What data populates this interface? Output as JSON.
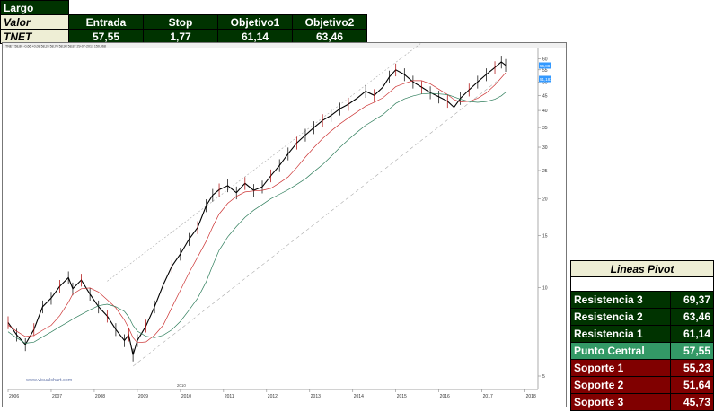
{
  "trade": {
    "direction": "Largo",
    "value_label": "Valor",
    "ticker": "TNET",
    "headers": [
      "Entrada",
      "Stop",
      "Objetivo1",
      "Objetivo2"
    ],
    "values": [
      "57,55",
      "1,77",
      "61,14",
      "63,46"
    ]
  },
  "chart_data": {
    "type": "line",
    "series": [
      {
        "name": "",
        "values": []
      }
    ],
    "watermark": "www.visualchart.com",
    "top_bar_text": "TNET 58,80 -0,66 +0,08 58,24 58,70 58,98 58,87 29-07-2017 150,968",
    "x_axis_labels": [
      "2006",
      "2007",
      "2008",
      "2009",
      "2010",
      "2011",
      "2012",
      "2013",
      "2014",
      "2015",
      "2016",
      "2017",
      "2018"
    ],
    "y_axis_labels": [
      "60",
      "55",
      "50",
      "45",
      "40",
      "35",
      "30",
      "25",
      "20",
      "15",
      "10",
      "5"
    ],
    "y_scale": "log",
    "ylim": [
      4.5,
      65
    ],
    "price_tags": [
      "56,88",
      "51,183"
    ],
    "start_year": 2006,
    "points": [
      [
        2006.0,
        7.6
      ],
      [
        2006.2,
        6.9
      ],
      [
        2006.4,
        6.4
      ],
      [
        2006.6,
        7.2
      ],
      [
        2006.8,
        8.6
      ],
      [
        2007.0,
        9.2
      ],
      [
        2007.2,
        10.1
      ],
      [
        2007.4,
        10.8
      ],
      [
        2007.5,
        9.9
      ],
      [
        2007.7,
        10.6
      ],
      [
        2007.9,
        9.5
      ],
      [
        2008.1,
        8.6
      ],
      [
        2008.3,
        8.0
      ],
      [
        2008.5,
        7.2
      ],
      [
        2008.7,
        6.6
      ],
      [
        2008.8,
        6.9
      ],
      [
        2008.9,
        5.9
      ],
      [
        2009.0,
        6.6
      ],
      [
        2009.2,
        7.4
      ],
      [
        2009.4,
        8.6
      ],
      [
        2009.6,
        10.2
      ],
      [
        2009.8,
        11.8
      ],
      [
        2010.0,
        13.0
      ],
      [
        2010.2,
        14.6
      ],
      [
        2010.4,
        16.0
      ],
      [
        2010.6,
        19.0
      ],
      [
        2010.75,
        20.6
      ],
      [
        2010.9,
        21.5
      ],
      [
        2011.1,
        22.2
      ],
      [
        2011.3,
        21.0
      ],
      [
        2011.5,
        22.6
      ],
      [
        2011.7,
        21.4
      ],
      [
        2011.9,
        22.0
      ],
      [
        2012.1,
        24.0
      ],
      [
        2012.3,
        26.0
      ],
      [
        2012.5,
        28.5
      ],
      [
        2012.7,
        31.0
      ],
      [
        2012.9,
        33.0
      ],
      [
        2013.1,
        35.0
      ],
      [
        2013.3,
        37.0
      ],
      [
        2013.5,
        38.5
      ],
      [
        2013.7,
        40.5
      ],
      [
        2013.9,
        42.0
      ],
      [
        2014.1,
        44.0
      ],
      [
        2014.3,
        46.5
      ],
      [
        2014.5,
        45.0
      ],
      [
        2014.7,
        48.0
      ],
      [
        2014.85,
        52.0
      ],
      [
        2015.0,
        55.0
      ],
      [
        2015.2,
        53.0
      ],
      [
        2015.4,
        50.0
      ],
      [
        2015.6,
        48.0
      ],
      [
        2015.8,
        46.0
      ],
      [
        2016.0,
        44.5
      ],
      [
        2016.2,
        43.0
      ],
      [
        2016.35,
        41.0
      ],
      [
        2016.5,
        44.0
      ],
      [
        2016.7,
        47.0
      ],
      [
        2016.9,
        50.0
      ],
      [
        2017.1,
        53.0
      ],
      [
        2017.3,
        56.0
      ],
      [
        2017.45,
        58.5
      ],
      [
        2017.55,
        57.0
      ]
    ]
  },
  "pivot": {
    "title": "Lineas Pivot",
    "rows": [
      {
        "label": "Resistencia 3",
        "value": "69,37"
      },
      {
        "label": "Resistencia 2",
        "value": "63,46"
      },
      {
        "label": "Resistencia 1",
        "value": "61,14"
      },
      {
        "label": "Punto Central",
        "value": "57,55"
      },
      {
        "label": "Soporte 1",
        "value": "55,23"
      },
      {
        "label": "Soporte 2",
        "value": "51,64"
      },
      {
        "label": "Soporte 3",
        "value": "45,73"
      }
    ]
  },
  "colors": {
    "dark_green": "#003300",
    "central_green": "#339966",
    "support_red": "#800000",
    "header_beige": "#eeeed5",
    "price_line": "#000000",
    "ma_short": "#cc3333",
    "ma_long": "#2e7d5b",
    "channel": "#aaaaaa",
    "price_tag": "#3399ff"
  }
}
